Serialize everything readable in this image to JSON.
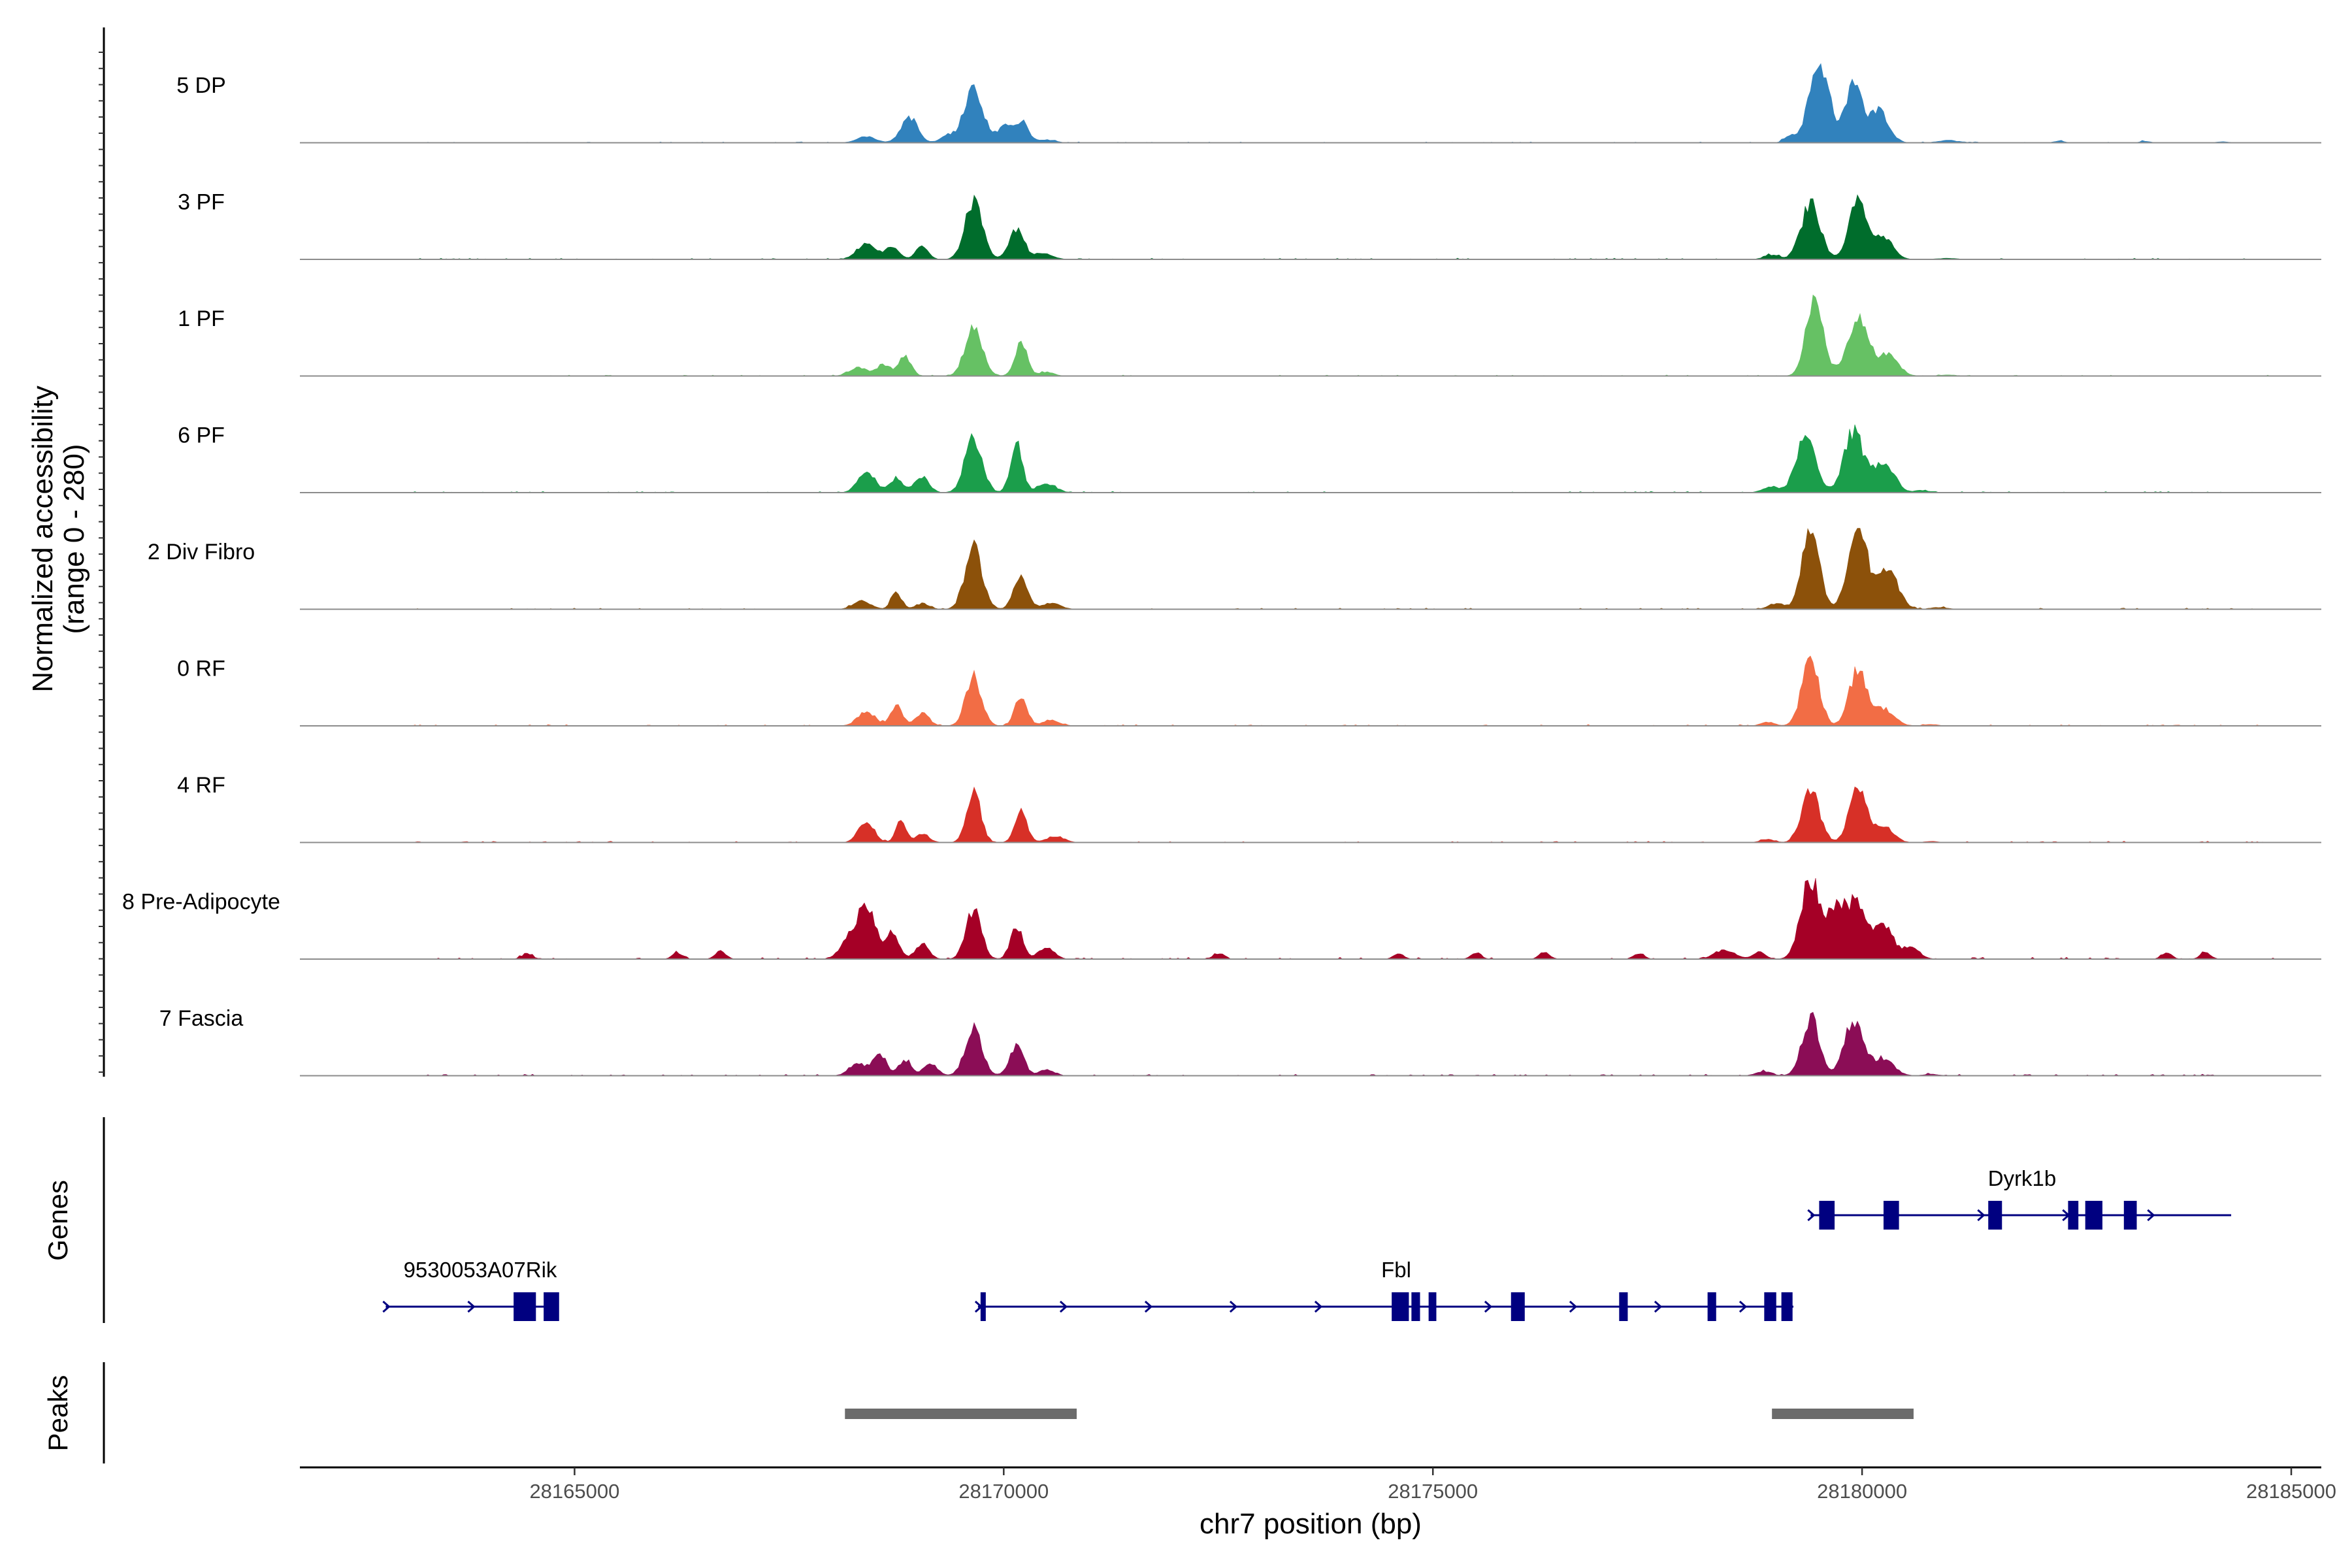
{
  "chart_data": {
    "type": "area",
    "title": "",
    "region": {
      "chrom": "chr7",
      "start": 28161800,
      "end": 28185350
    },
    "ylabel_line1": "Normalized accessibility",
    "ylabel_line2": "(range 0 - 280)",
    "ylim": [
      0,
      280
    ],
    "xlabel": "chr7 position (bp)",
    "x_ticks": [
      28165000,
      28170000,
      28175000,
      28180000,
      28185000
    ],
    "x_tick_labels": [
      "28165000",
      "28170000",
      "28175000",
      "28180000",
      "28185000"
    ],
    "series": [
      {
        "name": "5 DP",
        "color": "#3182bd",
        "peaks": [
          [
            28168400,
            22,
            110
          ],
          [
            28168900,
            90,
            95
          ],
          [
            28169650,
            190,
            110
          ],
          [
            28169350,
            25,
            80
          ],
          [
            28170000,
            60,
            70
          ],
          [
            28170200,
            75,
            80
          ],
          [
            28170500,
            10,
            100
          ],
          [
            28179500,
            280,
            115
          ],
          [
            28179900,
            200,
            100
          ],
          [
            28180200,
            110,
            110
          ],
          [
            28179150,
            25,
            60
          ],
          [
            28181000,
            8,
            120
          ],
          [
            28182300,
            6,
            60
          ],
          [
            28183300,
            5,
            60
          ],
          [
            28184200,
            4,
            60
          ]
        ],
        "noise": 3,
        "noise_range": [
          28163000,
          28184800
        ]
      },
      {
        "name": "3 PF",
        "color": "#006d2c",
        "peaks": [
          [
            28168400,
            55,
            110
          ],
          [
            28168700,
            40,
            80
          ],
          [
            28169050,
            50,
            70
          ],
          [
            28169650,
            200,
            100
          ],
          [
            28170150,
            105,
            85
          ],
          [
            28170450,
            20,
            110
          ],
          [
            28179400,
            190,
            110
          ],
          [
            28179950,
            200,
            100
          ],
          [
            28180250,
            75,
            110
          ],
          [
            28178950,
            15,
            90
          ],
          [
            28181000,
            4,
            120
          ]
        ],
        "noise": 4,
        "noise_range": [
          28163000,
          28184800
        ]
      },
      {
        "name": "1 PF",
        "color": "#66c164",
        "peaks": [
          [
            28168300,
            30,
            100
          ],
          [
            28168600,
            40,
            80
          ],
          [
            28168850,
            70,
            70
          ],
          [
            28169650,
            160,
            100
          ],
          [
            28170200,
            120,
            70
          ],
          [
            28170500,
            14,
            80
          ],
          [
            28179450,
            270,
            100
          ],
          [
            28179950,
            200,
            120
          ],
          [
            28180300,
            70,
            120
          ],
          [
            28181000,
            4,
            100
          ]
        ],
        "noise": 3,
        "noise_range": [
          28163000,
          28184800
        ]
      },
      {
        "name": "6 PF",
        "color": "#1b9e4b",
        "peaks": [
          [
            28168400,
            70,
            100
          ],
          [
            28168750,
            50,
            80
          ],
          [
            28169050,
            55,
            80
          ],
          [
            28169650,
            190,
            100
          ],
          [
            28170150,
            165,
            70
          ],
          [
            28170500,
            30,
            110
          ],
          [
            28179350,
            200,
            110
          ],
          [
            28179900,
            210,
            110
          ],
          [
            28180250,
            110,
            120
          ],
          [
            28178950,
            20,
            100
          ],
          [
            28180700,
            8,
            80
          ]
        ],
        "noise": 4,
        "noise_range": [
          28163000,
          28184800
        ]
      },
      {
        "name": "2 Div Fibro",
        "color": "#8c510a",
        "peaks": [
          [
            28168350,
            30,
            100
          ],
          [
            28168750,
            60,
            60
          ],
          [
            28169050,
            20,
            80
          ],
          [
            28169650,
            210,
            100
          ],
          [
            28170200,
            120,
            80
          ],
          [
            28170550,
            20,
            110
          ],
          [
            28179400,
            280,
            100
          ],
          [
            28179950,
            280,
            110
          ],
          [
            28180300,
            130,
            120
          ],
          [
            28179000,
            20,
            90
          ],
          [
            28180900,
            6,
            100
          ]
        ],
        "noise": 4,
        "noise_range": [
          28163000,
          28184800
        ]
      },
      {
        "name": "0 RF",
        "color": "#f26d45",
        "peaks": [
          [
            28168400,
            50,
            100
          ],
          [
            28168750,
            70,
            70
          ],
          [
            28169050,
            45,
            80
          ],
          [
            28169650,
            170,
            90
          ],
          [
            28170200,
            110,
            70
          ],
          [
            28170550,
            20,
            100
          ],
          [
            28179400,
            230,
            100
          ],
          [
            28179950,
            190,
            100
          ],
          [
            28180250,
            60,
            120
          ],
          [
            28178900,
            12,
            80
          ],
          [
            28180800,
            5,
            80
          ]
        ],
        "noise": 4,
        "noise_range": [
          28163000,
          28184800
        ]
      },
      {
        "name": "4 RF",
        "color": "#d73027",
        "peaks": [
          [
            28168400,
            75,
            90
          ],
          [
            28168800,
            70,
            60
          ],
          [
            28169050,
            30,
            80
          ],
          [
            28169650,
            180,
            80
          ],
          [
            28170200,
            110,
            70
          ],
          [
            28170600,
            22,
            100
          ],
          [
            28179400,
            190,
            100
          ],
          [
            28179950,
            180,
            100
          ],
          [
            28180250,
            60,
            110
          ],
          [
            28178900,
            10,
            80
          ],
          [
            28180800,
            4,
            80
          ]
        ],
        "noise": 4,
        "noise_range": [
          28163000,
          28184800
        ]
      },
      {
        "name": "8 Pre-Adipocyte",
        "color": "#a50026",
        "peaks": [
          [
            28168200,
            70,
            100
          ],
          [
            28168400,
            180,
            100
          ],
          [
            28168700,
            90,
            80
          ],
          [
            28169050,
            50,
            80
          ],
          [
            28169650,
            170,
            90
          ],
          [
            28170150,
            115,
            70
          ],
          [
            28170500,
            40,
            90
          ],
          [
            28179400,
            280,
            110
          ],
          [
            28179700,
            180,
            100
          ],
          [
            28179950,
            200,
            110
          ],
          [
            28180250,
            120,
            100
          ],
          [
            28180550,
            40,
            110
          ],
          [
            28178400,
            30,
            120
          ],
          [
            28178800,
            25,
            70
          ],
          [
            28164450,
            20,
            60
          ],
          [
            28166200,
            22,
            60
          ],
          [
            28166700,
            30,
            60
          ],
          [
            28172500,
            18,
            60
          ],
          [
            28174600,
            18,
            60
          ],
          [
            28175500,
            20,
            60
          ],
          [
            28176300,
            25,
            60
          ],
          [
            28177400,
            20,
            60
          ],
          [
            28183550,
            22,
            60
          ],
          [
            28184000,
            22,
            60
          ]
        ],
        "noise": 6,
        "noise_range": [
          28163000,
          28184800
        ]
      },
      {
        "name": "7 Fascia",
        "color": "#8b0d56",
        "peaks": [
          [
            28168300,
            40,
            100
          ],
          [
            28168550,
            75,
            80
          ],
          [
            28168850,
            55,
            70
          ],
          [
            28169150,
            40,
            80
          ],
          [
            28169650,
            160,
            100
          ],
          [
            28170150,
            100,
            80
          ],
          [
            28170500,
            20,
            90
          ],
          [
            28179400,
            200,
            100
          ],
          [
            28179900,
            190,
            110
          ],
          [
            28180250,
            60,
            120
          ],
          [
            28178850,
            15,
            90
          ],
          [
            28180800,
            6,
            80
          ]
        ],
        "noise": 5,
        "noise_range": [
          28163000,
          28184800
        ]
      }
    ],
    "genes_label": "Genes",
    "genes": [
      {
        "name": "Dyrk1b",
        "start": 28179400,
        "end": 28184300,
        "strand": "+",
        "row": 0,
        "exons": [
          [
            28179500,
            28179680
          ],
          [
            28180250,
            28180430
          ],
          [
            28181470,
            28181630
          ],
          [
            28182400,
            28182520
          ],
          [
            28182600,
            28182800
          ],
          [
            28183050,
            28183200
          ]
        ]
      },
      {
        "name": "9530053A07Rik",
        "start": 28162800,
        "end": 28164800,
        "strand": "+",
        "row": 1,
        "exons": [
          [
            28164290,
            28164550
          ],
          [
            28164640,
            28164820
          ]
        ]
      },
      {
        "name": "Fbl",
        "start": 28169700,
        "end": 28179200,
        "strand": "+",
        "row": 1,
        "exons": [
          [
            28169730,
            28169790
          ],
          [
            28174520,
            28174720
          ],
          [
            28174750,
            28174850
          ],
          [
            28174950,
            28175040
          ],
          [
            28175910,
            28176070
          ],
          [
            28177170,
            28177270
          ],
          [
            28178200,
            28178300
          ],
          [
            28178860,
            28179000
          ],
          [
            28179060,
            28179190
          ]
        ]
      }
    ],
    "peaks_label": "Peaks",
    "peak_regions": [
      [
        28168150,
        28170850
      ],
      [
        28178950,
        28180600
      ]
    ]
  }
}
